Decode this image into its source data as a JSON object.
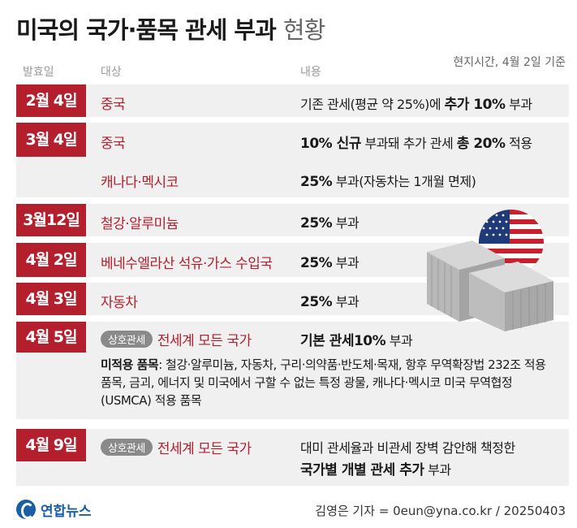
{
  "title": {
    "bold": "미국의 국가·품목 관세 부과",
    "light": "현황"
  },
  "meta": "현지시간, 4월 2일 기준",
  "headers": {
    "date": "발효일",
    "target": "대상",
    "content": "내용"
  },
  "rows": [
    {
      "date": "2월 4일",
      "target": "중국",
      "content": {
        "pre": "기존 관세(평균 약 25%)에 ",
        "bold": "추가 10%",
        "post": " 부과"
      }
    },
    {
      "date": "3월 4일",
      "target": "중국",
      "content": {
        "b1": "10% 신규",
        "mid": " 부과돼 추가 관세 ",
        "b2": "총 20%",
        "post": " 적용"
      }
    },
    {
      "date": "",
      "target": "캐나다·멕시코",
      "content": {
        "bold": "25%",
        "post": " 부과(자동차는 1개월 면제)"
      }
    },
    {
      "date": "3월12일",
      "target": "철강·알루미늄",
      "content": {
        "bold": "25%",
        "post": " 부과"
      }
    },
    {
      "date": "4월 2일",
      "target": "베네수엘라산 석유·가스 수입국",
      "content": {
        "bold": "25%",
        "post": " 부과"
      }
    },
    {
      "date": "4월 3일",
      "target": "자동차",
      "content": {
        "bold": "25%",
        "post": " 부과"
      }
    },
    {
      "date": "4월 5일",
      "pill": "상호관세",
      "target": "전세계 모든 국가",
      "content": {
        "bold": "기본 관세10%",
        "post": " 부과"
      },
      "note": {
        "bold": "미적용 품목",
        "text": ": 철강·알루미늄, 자동차, 구리·의약품·반도체·목재, 항후 무역확장법 232조 적용 품목, 금괴, 에너지 및 미국에서 구할 수 없는 특정 광물, 캐나다·멕시코 미국 무역협정(USMCA) 적용 품목"
      }
    },
    {
      "date": "4월 9일",
      "pill": "상호관세",
      "target": "전세계 모든 국가",
      "content": {
        "line1": "대미 관세율과 비관세 장벽 감안해 책정한",
        "bold": "국가별 개별 관세 추가",
        "post": " 부과"
      }
    }
  ],
  "logo": "연합뉴스",
  "credit": "김영은 기자 = 0eun@yna.co.kr / 20250403",
  "icons": {
    "flag": "us-flag-icon",
    "containers": "shipping-containers-icon"
  },
  "colors": {
    "accent": "#b41f2d",
    "row_bg": "#f0f0f0",
    "pill": "#8a8a8a",
    "logo": "#1a5ea8"
  }
}
